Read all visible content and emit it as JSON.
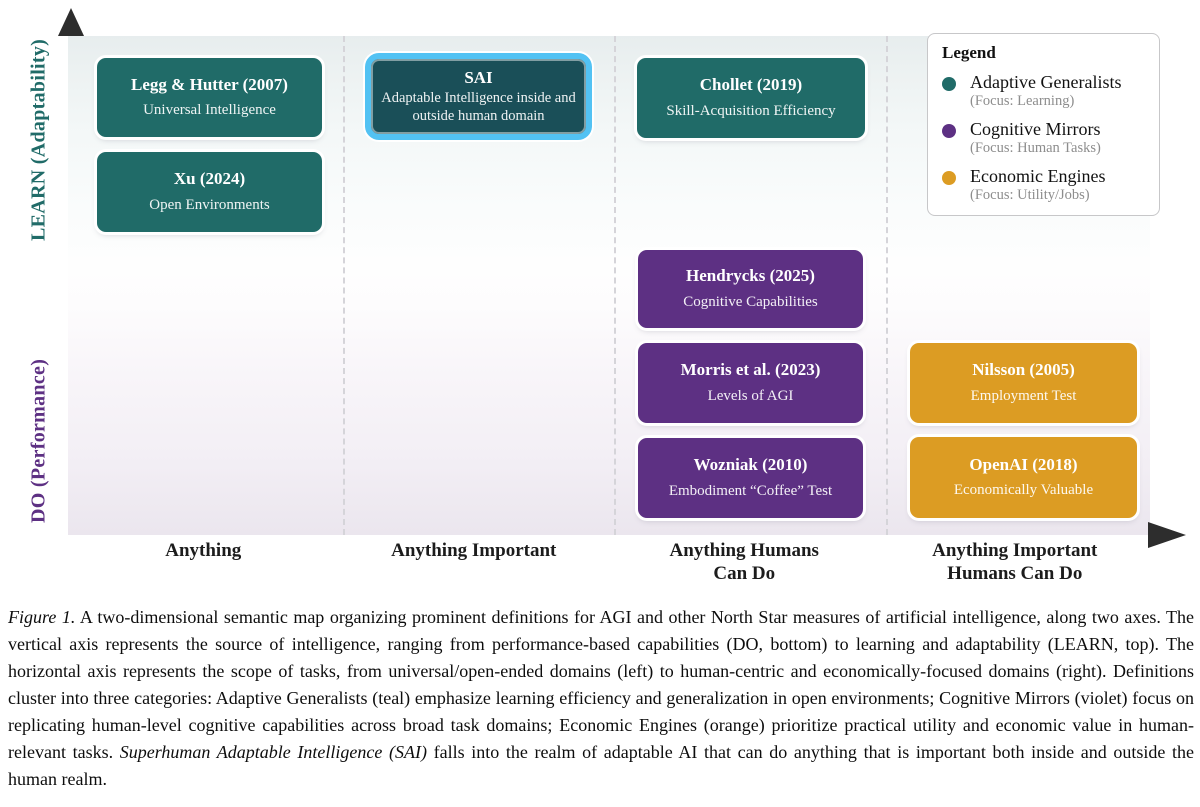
{
  "figure": {
    "y_axis": {
      "top_label": "LEARN (Adaptability)",
      "bottom_label": "DO (Performance)"
    },
    "x_axis": {
      "labels": [
        {
          "line1": "Anything",
          "line2": ""
        },
        {
          "line1": "Anything Important",
          "line2": ""
        },
        {
          "line1": "Anything Humans",
          "line2": "Can Do"
        },
        {
          "line1": "Anything Important",
          "line2": "Humans Can Do"
        }
      ]
    },
    "boxes": [
      {
        "id": "legg-hutter-2007",
        "category": "adaptive-generalist",
        "highlighted": false,
        "title": "Legg & Hutter (2007)",
        "subtitle": "Universal Intelligence"
      },
      {
        "id": "xu-2024",
        "category": "adaptive-generalist",
        "highlighted": false,
        "title": "Xu (2024)",
        "subtitle": "Open Environments"
      },
      {
        "id": "sai",
        "category": "adaptive-generalist",
        "highlighted": true,
        "title": "SAI",
        "subtitle": "Adaptable Intelligence inside and outside human domain"
      },
      {
        "id": "chollet-2019",
        "category": "adaptive-generalist",
        "highlighted": false,
        "title": "Chollet (2019)",
        "subtitle": "Skill-Acquisition Efficiency"
      },
      {
        "id": "hendrycks-2025",
        "category": "cognitive-mirror",
        "highlighted": false,
        "title": "Hendrycks (2025)",
        "subtitle": "Cognitive Capabilities"
      },
      {
        "id": "morris-2023",
        "category": "cognitive-mirror",
        "highlighted": false,
        "title": "Morris et al. (2023)",
        "subtitle": "Levels of AGI"
      },
      {
        "id": "wozniak-2010",
        "category": "cognitive-mirror",
        "highlighted": false,
        "title": "Wozniak (2010)",
        "subtitle": "Embodiment “Coffee” Test"
      },
      {
        "id": "nilsson-2005",
        "category": "economic-engine",
        "highlighted": false,
        "title": "Nilsson (2005)",
        "subtitle": "Employment Test"
      },
      {
        "id": "openai-2018",
        "category": "economic-engine",
        "highlighted": false,
        "title": "OpenAI (2018)",
        "subtitle": "Economically Valuable"
      }
    ],
    "legend": {
      "title": "Legend",
      "entries": [
        {
          "label": "Adaptive Generalists",
          "focus": "(Focus: Learning)",
          "color": "#206b68"
        },
        {
          "label": "Cognitive Mirrors",
          "focus": "(Focus: Human Tasks)",
          "color": "#5d3083"
        },
        {
          "label": "Economic Engines",
          "focus": "(Focus: Utility/Jobs)",
          "color": "#dc9c23"
        }
      ]
    },
    "colors": {
      "adaptive_generalist": "#206b68",
      "cognitive_mirror": "#5d3083",
      "economic_engine": "#dc9c23",
      "sai_fill": "#1a4f58",
      "sai_highlight": "#52c2f3"
    }
  },
  "caption": {
    "label": "Figure 1.",
    "body_1": "A two-dimensional semantic map organizing prominent definitions for AGI and other North Star measures of artificial intelligence, along two axes. The vertical axis represents the source of intelligence, ranging from performance-based capabilities (DO, bottom) to learning and adaptability (LEARN, top). The horizontal axis represents the scope of tasks, from universal/open-ended domains (left) to human-centric and economically-focused domains (right). Definitions cluster into three categories: Adaptive Generalists (teal) emphasize learning efficiency and generalization in open environments; Cognitive Mirrors (violet) focus on replicating human-level cognitive capabilities across broad task domains; Economic Engines (orange) prioritize practical utility and economic value in human-relevant tasks.",
    "italic": "Superhuman Adaptable Intelligence (SAI)",
    "body_2": "falls into the realm of adaptable AI that can do anything that is important both inside and outside the human realm."
  }
}
